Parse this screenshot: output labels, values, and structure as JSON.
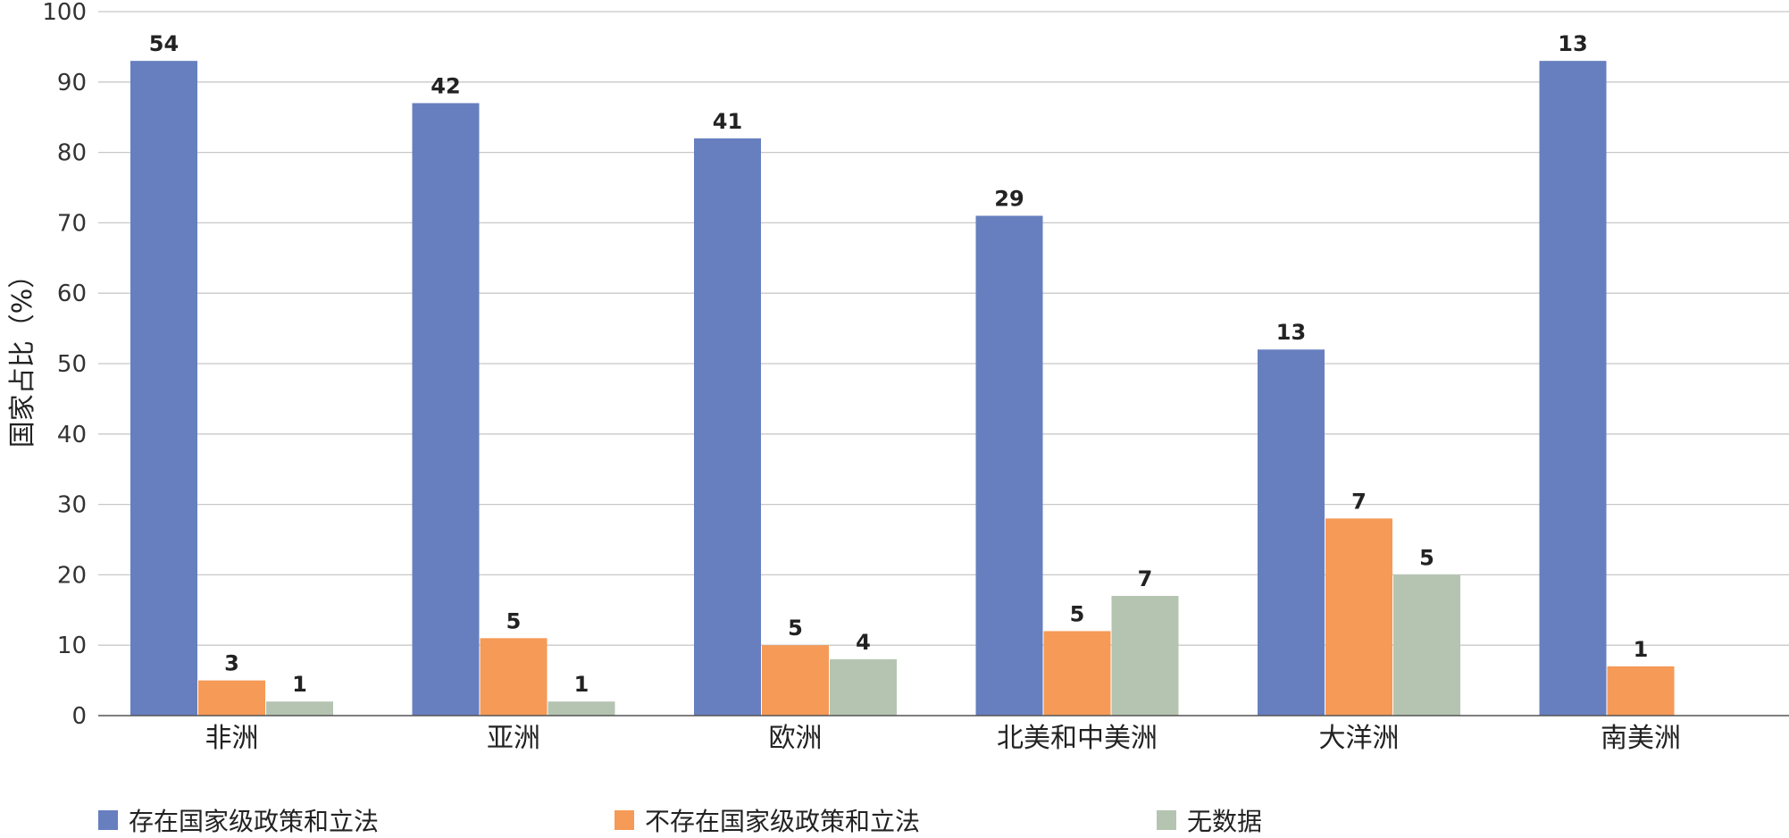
{
  "chart_data": {
    "type": "bar",
    "ylabel": "国家占比（%）",
    "ylim": [
      0,
      100
    ],
    "yticks": [
      0,
      10,
      20,
      30,
      40,
      50,
      60,
      70,
      80,
      90,
      100
    ],
    "grid": true,
    "legend_position": "bottom",
    "categories": [
      "非洲",
      "亚洲",
      "欧洲",
      "北美和中美洲",
      "大洋洲",
      "南美洲"
    ],
    "series": [
      {
        "name": "存在国家级政策和立法",
        "color": "#677fbf",
        "values": [
          93,
          87,
          82,
          71,
          52,
          93
        ],
        "labels": [
          "54",
          "42",
          "41",
          "29",
          "13",
          "13"
        ]
      },
      {
        "name": "不存在国家级政策和立法",
        "color": "#f59a57",
        "values": [
          5,
          11,
          10,
          12,
          28,
          7
        ],
        "labels": [
          "3",
          "5",
          "5",
          "5",
          "7",
          "1"
        ]
      },
      {
        "name": "无数据",
        "color": "#b5c4b1",
        "values": [
          2,
          2,
          8,
          17,
          20,
          null
        ],
        "labels": [
          "1",
          "1",
          "4",
          "7",
          "5",
          null
        ]
      }
    ]
  }
}
